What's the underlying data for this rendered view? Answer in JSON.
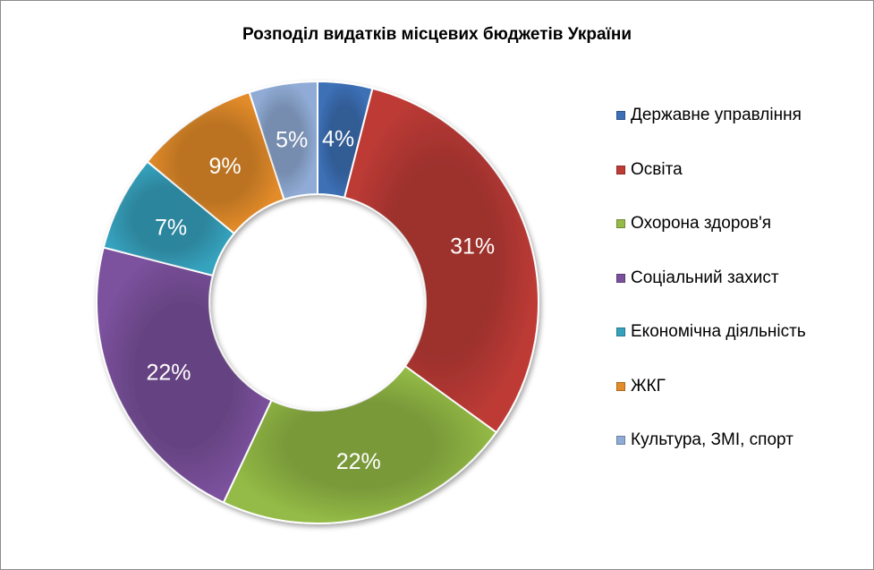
{
  "chart_data": {
    "type": "pie",
    "variant": "doughnut",
    "title": "Розподіл видатків місцевих бюджетів України",
    "categories": [
      "Державне управління",
      "Освіта",
      "Охорона здоров'я",
      "Соціальний захист",
      "Економічна діяльність",
      "ЖКГ",
      "Культура, ЗМІ, спорт"
    ],
    "values": [
      4,
      31,
      22,
      22,
      7,
      9,
      5
    ],
    "data_labels": [
      "4%",
      "31%",
      "22%",
      "22%",
      "7%",
      "9%",
      "5%"
    ],
    "colors": [
      "#3C6FB5",
      "#BE3B36",
      "#94BB46",
      "#7B519D",
      "#36A2BE",
      "#E48C2A",
      "#90ACD6"
    ],
    "legend_position": "right",
    "grid": false
  }
}
